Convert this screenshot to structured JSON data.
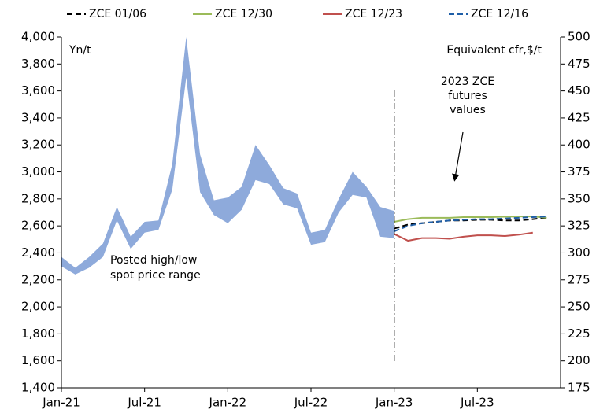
{
  "chart_data": {
    "type": "line",
    "y_label": "Yn/t",
    "y2_label": "Equivalent cfr,$/t",
    "annotations": {
      "futures": [
        "2023 ZCE",
        "futures",
        "values"
      ],
      "range": [
        "Posted high/low",
        "spot price range"
      ]
    },
    "xlim": [
      0,
      36
    ],
    "xticks": [
      {
        "value": 0,
        "label": "Jan-21"
      },
      {
        "value": 6,
        "label": "Jul-21"
      },
      {
        "value": 12,
        "label": "Jan-22"
      },
      {
        "value": 18,
        "label": "Jul-22"
      },
      {
        "value": 24,
        "label": "Jan-23"
      },
      {
        "value": 30,
        "label": "Jul-23"
      }
    ],
    "ylim": [
      1400,
      4000
    ],
    "yticks": [
      {
        "value": 1400,
        "label": "1,400"
      },
      {
        "value": 1600,
        "label": "1,600"
      },
      {
        "value": 1800,
        "label": "1,800"
      },
      {
        "value": 2000,
        "label": "2,000"
      },
      {
        "value": 2200,
        "label": "2,200"
      },
      {
        "value": 2400,
        "label": "2,400"
      },
      {
        "value": 2600,
        "label": "2,600"
      },
      {
        "value": 2800,
        "label": "2,800"
      },
      {
        "value": 3000,
        "label": "3,000"
      },
      {
        "value": 3200,
        "label": "3,200"
      },
      {
        "value": 3400,
        "label": "3,400"
      },
      {
        "value": 3600,
        "label": "3,600"
      },
      {
        "value": 3800,
        "label": "3,800"
      },
      {
        "value": 4000,
        "label": "4,000"
      }
    ],
    "y2lim": [
      175,
      500
    ],
    "y2ticks": [
      175,
      200,
      225,
      250,
      275,
      300,
      325,
      350,
      375,
      400,
      425,
      450,
      475,
      500
    ],
    "divider_x": 24,
    "range": {
      "color": "#8eaadb",
      "x": [
        0,
        1,
        2,
        3,
        4,
        5,
        6,
        7,
        8,
        9,
        10,
        11,
        12,
        13,
        14,
        15,
        16,
        17,
        18,
        19,
        20,
        21,
        22,
        23,
        24
      ],
      "high": [
        2370,
        2290,
        2370,
        2470,
        2740,
        2520,
        2630,
        2640,
        3060,
        4000,
        3130,
        2790,
        2810,
        2890,
        3200,
        3050,
        2880,
        2840,
        2550,
        2570,
        2800,
        3000,
        2890,
        2740,
        2710
      ],
      "low": [
        2300,
        2240,
        2290,
        2370,
        2640,
        2430,
        2550,
        2570,
        2870,
        3700,
        2850,
        2680,
        2620,
        2720,
        2940,
        2910,
        2760,
        2730,
        2460,
        2480,
        2700,
        2830,
        2810,
        2520,
        2510
      ]
    },
    "series": [
      {
        "name": "ZCE 01/06",
        "color": "#000000",
        "dashed": true,
        "x": [
          24,
          25,
          26,
          27,
          28,
          29,
          30,
          31,
          32,
          33,
          34,
          35
        ],
        "values": [
          2580,
          2610,
          2620,
          2630,
          2640,
          2640,
          2645,
          2645,
          2640,
          2640,
          2650,
          2660
        ]
      },
      {
        "name": "ZCE 12/30",
        "color": "#9bbb59",
        "dashed": false,
        "x": [
          24,
          25,
          26,
          27,
          28,
          29,
          30,
          31,
          32,
          33,
          34,
          35
        ],
        "values": [
          2630,
          2650,
          2660,
          2660,
          2660,
          2665,
          2665,
          2665,
          2668,
          2670,
          2670,
          2660
        ]
      },
      {
        "name": "ZCE 12/23",
        "color": "#c0504d",
        "dashed": false,
        "x": [
          24,
          25,
          26,
          27,
          28,
          29,
          30,
          31,
          32,
          33,
          34
        ],
        "values": [
          2540,
          2490,
          2510,
          2510,
          2505,
          2520,
          2530,
          2530,
          2525,
          2535,
          2550
        ]
      },
      {
        "name": "ZCE 12/16",
        "color": "#1f5fa8",
        "dashed": true,
        "x": [
          24,
          25,
          26,
          27,
          28,
          29,
          30,
          31,
          32,
          33,
          34,
          35
        ],
        "values": [
          2560,
          2600,
          2620,
          2630,
          2640,
          2645,
          2650,
          2650,
          2655,
          2660,
          2665,
          2670
        ]
      }
    ]
  }
}
